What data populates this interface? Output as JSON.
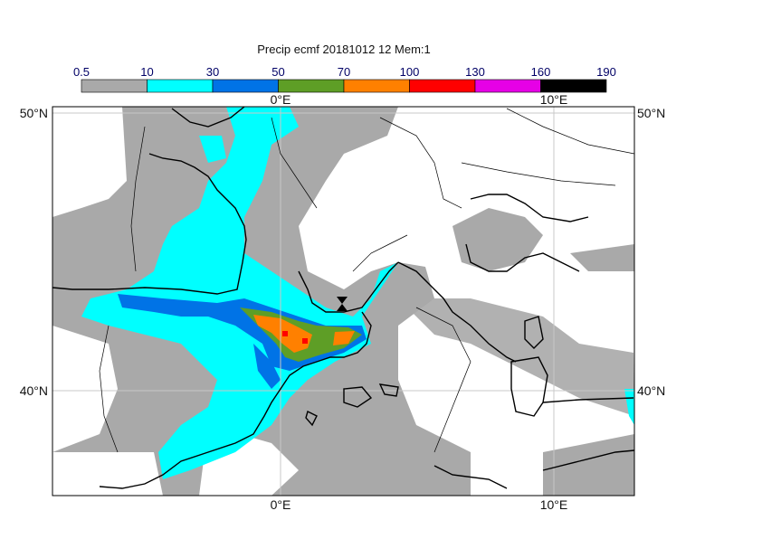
{
  "title": "Precip ecmf 20181012 12 Mem:1",
  "legend": {
    "thresholds": [
      "0.5",
      "10",
      "30",
      "50",
      "70",
      "100",
      "130",
      "160",
      "190"
    ],
    "colors": [
      "#a9a9a9",
      "#00ffff",
      "#0073e6",
      "#5e9e26",
      "#ff8000",
      "#ff0000",
      "#e600e6",
      "#000000"
    ]
  },
  "axes": {
    "lon_labels": [
      "0°E",
      "10°E"
    ],
    "lat_labels": [
      "50°N",
      "40°N"
    ]
  },
  "colors": {
    "land_outline": "#000000",
    "graticule": "#c8c8c8"
  }
}
